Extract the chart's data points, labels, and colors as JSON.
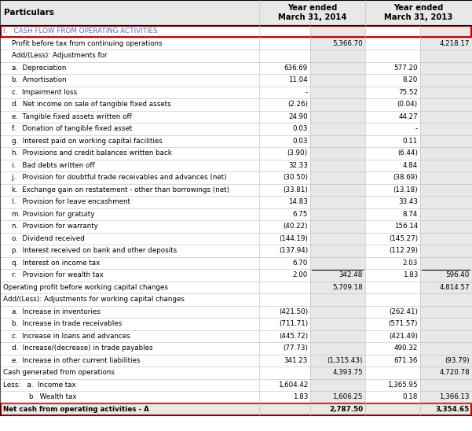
{
  "title_col": "Particulars",
  "col2": "Year ended\nMarch 31, 2014",
  "col3": "Year ended\nMarch 31, 2013",
  "header_bg": "#e8e8e8",
  "gray_col_bg": "#e8e8e8",
  "white_bg": "#ffffff",
  "highlight_bg": "#e8e8e8",
  "red_border_color": "#cc0000",
  "black": "#000000",
  "blue_text": "#4472c4",
  "rows": [
    {
      "label": "I.   CASH FLOW FROM OPERATING ACTIVITIES",
      "col2a": "",
      "col2b": "",
      "col3a": "",
      "col3b": "",
      "style": "blue_header",
      "red_box": true
    },
    {
      "label": "    Profit before tax from continuing operations",
      "col2a": "",
      "col2b": "5,366.70",
      "col3a": "",
      "col3b": "4,218.17",
      "style": "normal"
    },
    {
      "label": "    Add/(Less): Adjustments for",
      "col2a": "",
      "col2b": "",
      "col3a": "",
      "col3b": "",
      "style": "normal"
    },
    {
      "label": "    a.  Depreciation",
      "col2a": "636.69",
      "col2b": "",
      "col3a": "577.20",
      "col3b": "",
      "style": "normal"
    },
    {
      "label": "    b.  Amortisation",
      "col2a": "11.04",
      "col2b": "",
      "col3a": "8.20",
      "col3b": "",
      "style": "normal"
    },
    {
      "label": "    c.  Impairment loss",
      "col2a": "-",
      "col2b": "",
      "col3a": "75.52",
      "col3b": "",
      "style": "normal"
    },
    {
      "label": "    d.  Net income on sale of tangible fixed assets",
      "col2a": "(2.26)",
      "col2b": "",
      "col3a": "(0.04)",
      "col3b": "",
      "style": "normal"
    },
    {
      "label": "    e.  Tangible fixed assets written off",
      "col2a": "24.90",
      "col2b": "",
      "col3a": "44.27",
      "col3b": "",
      "style": "normal"
    },
    {
      "label": "    f.   Donation of tangible fixed asset",
      "col2a": "0.03",
      "col2b": "",
      "col3a": "-",
      "col3b": "",
      "style": "normal"
    },
    {
      "label": "    g.  Interest paid on working capital facilities",
      "col2a": "0.03",
      "col2b": "",
      "col3a": "0.11",
      "col3b": "",
      "style": "normal"
    },
    {
      "label": "    h.  Provisions and credit balances written back",
      "col2a": "(3.90)",
      "col2b": "",
      "col3a": "(6.44)",
      "col3b": "",
      "style": "normal"
    },
    {
      "label": "    i.   Bad debts written off",
      "col2a": "32.33",
      "col2b": "",
      "col3a": "4.84",
      "col3b": "",
      "style": "normal"
    },
    {
      "label": "    j.   Provision for doubtful trade receivables and advances (net)",
      "col2a": "(30.50)",
      "col2b": "",
      "col3a": "(38.69)",
      "col3b": "",
      "style": "normal"
    },
    {
      "label": "    k.  Exchange gain on restatement - other than borrowings (net)",
      "col2a": "(33.81)",
      "col2b": "",
      "col3a": "(13.18)",
      "col3b": "",
      "style": "normal"
    },
    {
      "label": "    l.   Provision for leave encashment",
      "col2a": "14.83",
      "col2b": "",
      "col3a": "33.43",
      "col3b": "",
      "style": "normal"
    },
    {
      "label": "    m. Provision for gratuity",
      "col2a": "6.75",
      "col2b": "",
      "col3a": "8.74",
      "col3b": "",
      "style": "normal"
    },
    {
      "label": "    n.  Provision for warranty",
      "col2a": "(40.22)",
      "col2b": "",
      "col3a": "156.14",
      "col3b": "",
      "style": "normal"
    },
    {
      "label": "    o.  Dividend received",
      "col2a": "(144.19)",
      "col2b": "",
      "col3a": "(145.27)",
      "col3b": "",
      "style": "normal"
    },
    {
      "label": "    p.  Interest received on bank and other deposits",
      "col2a": "(137.94)",
      "col2b": "",
      "col3a": "(112.29)",
      "col3b": "",
      "style": "normal"
    },
    {
      "label": "    q.  Interest on income tax",
      "col2a": "6.70",
      "col2b": "",
      "col3a": "2.03",
      "col3b": "",
      "style": "normal"
    },
    {
      "label": "    r.   Provision for wealth tax",
      "col2a": "2.00",
      "col2b": "342.48",
      "col3a": "1.83",
      "col3b": "596.40",
      "style": "normal",
      "sum_border": true
    },
    {
      "label": "Operating profit before working capital changes",
      "col2a": "",
      "col2b": "5,709.18",
      "col3a": "",
      "col3b": "4,814.57",
      "style": "normal"
    },
    {
      "label": "Add/(Less): Adjustments for working capital changes",
      "col2a": "",
      "col2b": "",
      "col3a": "",
      "col3b": "",
      "style": "normal"
    },
    {
      "label": "    a.  Increase in inventories",
      "col2a": "(421.50)",
      "col2b": "",
      "col3a": "(262.41)",
      "col3b": "",
      "style": "normal"
    },
    {
      "label": "    b.  Increase in trade receivables",
      "col2a": "(711.71)",
      "col2b": "",
      "col3a": "(571.57)",
      "col3b": "",
      "style": "normal"
    },
    {
      "label": "    c.  Increase in loans and advances",
      "col2a": "(445.72)",
      "col2b": "",
      "col3a": "(421.49)",
      "col3b": "",
      "style": "normal"
    },
    {
      "label": "    d.  Increase/(decrease) in trade payables",
      "col2a": "(77.73)",
      "col2b": "",
      "col3a": "490.32",
      "col3b": "",
      "style": "normal"
    },
    {
      "label": "    e.  Increase in other current liabilities",
      "col2a": "341.23",
      "col2b": "(1,315.43)",
      "col3a": "671.36",
      "col3b": "(93.79)",
      "style": "normal"
    },
    {
      "label": "Cash generated from operations",
      "col2a": "",
      "col2b": "4,393.75",
      "col3a": "",
      "col3b": "4,720.78",
      "style": "normal"
    },
    {
      "label": "Less:   a.  Income tax",
      "col2a": "1,604.42",
      "col2b": "",
      "col3a": "1,365.95",
      "col3b": "",
      "style": "normal"
    },
    {
      "label": "            b.  Wealth tax",
      "col2a": "1.83",
      "col2b": "1,606.25",
      "col3a": "0.18",
      "col3b": "1,366.13",
      "style": "normal"
    },
    {
      "label": "Net cash from operating activities - A",
      "col2a": "",
      "col2b": "2,787.50",
      "col3a": "",
      "col3b": "3,354.65",
      "style": "bold_highlight",
      "red_box": true
    }
  ]
}
